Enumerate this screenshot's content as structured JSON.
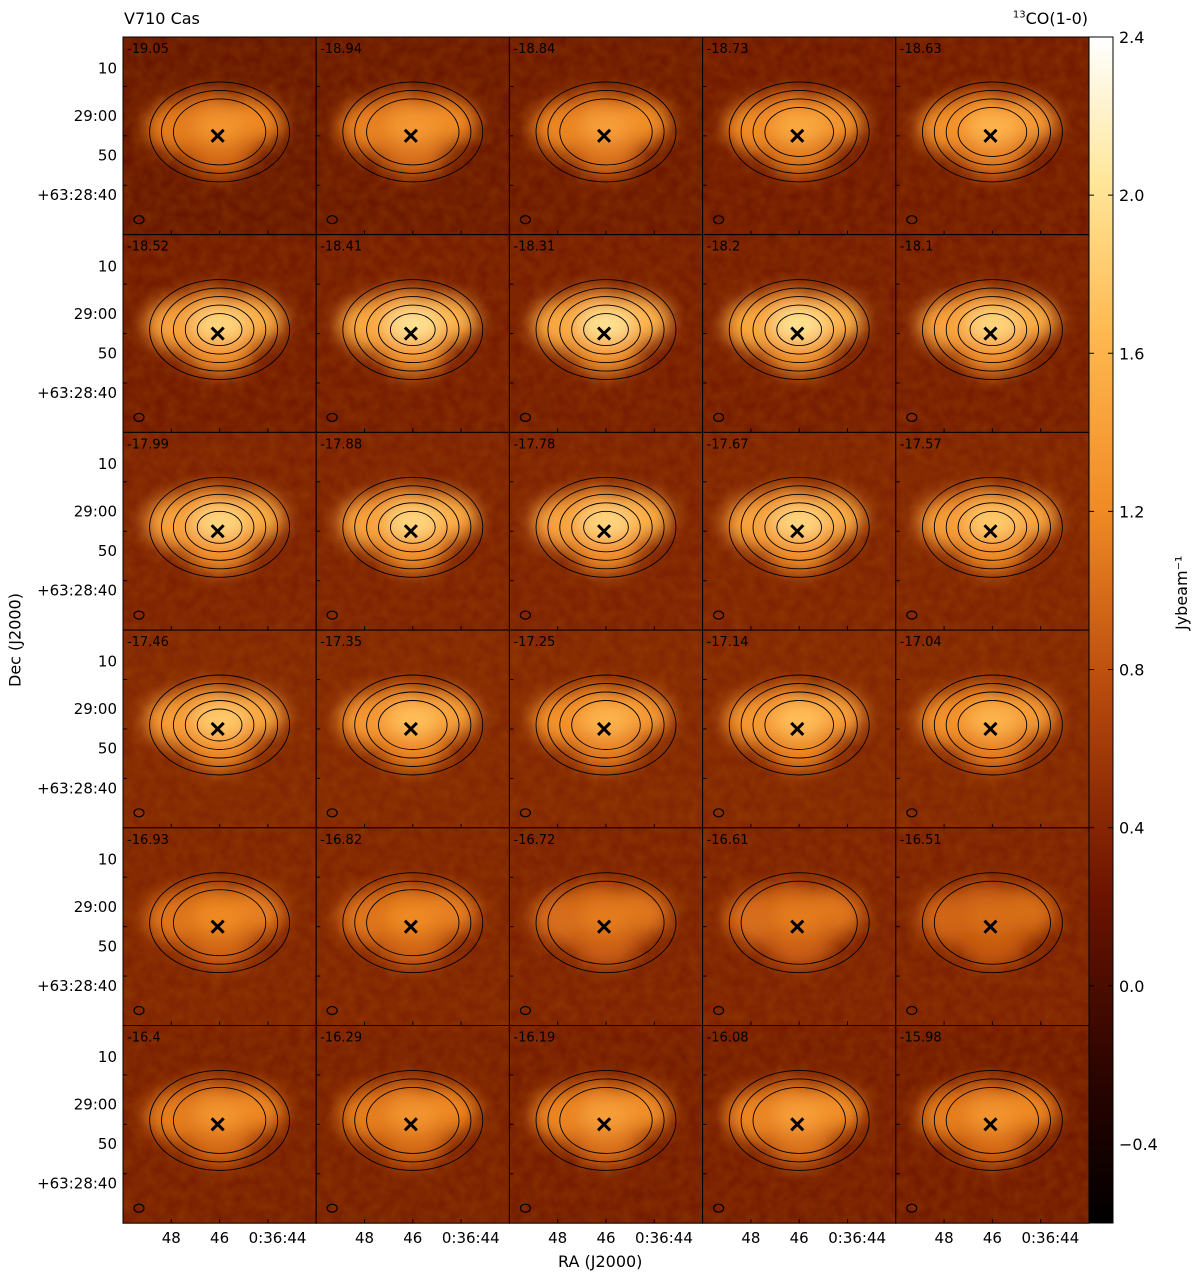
{
  "figure": {
    "title_left": "V710 Cas",
    "title_right_sup": "13",
    "title_right": "CO(1-0)",
    "xlabel": "RA (J2000)",
    "ylabel": "Dec (J2000)",
    "colorbar_label": "Jybeam⁻¹",
    "colors": {
      "low": "#000000",
      "mid_low": "#5a0e00",
      "mid": "#c8601a",
      "mid_high": "#ff9a30",
      "high": "#ffffff",
      "contour": "#000000"
    }
  },
  "chart_data": {
    "type": "heatmap",
    "title": "V710 Cas",
    "subtitle": "13CO(1-0)",
    "xlabel": "RA (J2000)",
    "ylabel": "Dec (J2000)",
    "x_tick_labels": [
      "48",
      "46",
      "0:36:44"
    ],
    "y_tick_labels": [
      "10",
      "29:00",
      "50",
      "+63:28:40"
    ],
    "colorbar": {
      "label": "Jybeam⁻¹",
      "range": [
        -0.6,
        2.4
      ],
      "ticks": [
        2.4,
        2.0,
        1.6,
        1.2,
        0.8,
        0.4,
        0.0,
        -0.4
      ],
      "tick_labels": [
        "2.4",
        "2.0",
        "1.6",
        "1.2",
        "0.8",
        "0.4",
        "0.0",
        "−0.4"
      ]
    },
    "grid_rows": 6,
    "grid_cols": 5,
    "channel_velocities": [
      "-19.05",
      "-18.94",
      "-18.84",
      "-18.73",
      "-18.63",
      "-18.52",
      "-18.41",
      "-18.31",
      "-18.2",
      "-18.1",
      "-17.99",
      "-17.88",
      "-17.78",
      "-17.67",
      "-17.57",
      "-17.46",
      "-17.35",
      "-17.25",
      "-17.14",
      "-17.04",
      "-16.93",
      "-16.82",
      "-16.72",
      "-16.61",
      "-16.51",
      "-16.4",
      "-16.29",
      "-16.19",
      "-16.08",
      "-15.98"
    ],
    "channel_peak_intensity": [
      1.3,
      1.35,
      1.4,
      1.5,
      1.6,
      1.9,
      2.0,
      2.0,
      2.0,
      1.9,
      1.9,
      1.9,
      1.9,
      1.9,
      1.8,
      1.8,
      1.7,
      1.6,
      1.7,
      1.6,
      1.2,
      1.2,
      1.1,
      1.1,
      1.0,
      1.3,
      1.3,
      1.4,
      1.4,
      1.3
    ],
    "source_marker": "x",
    "contour_levels": [
      0.6,
      0.9,
      1.2,
      1.5,
      1.8
    ]
  }
}
